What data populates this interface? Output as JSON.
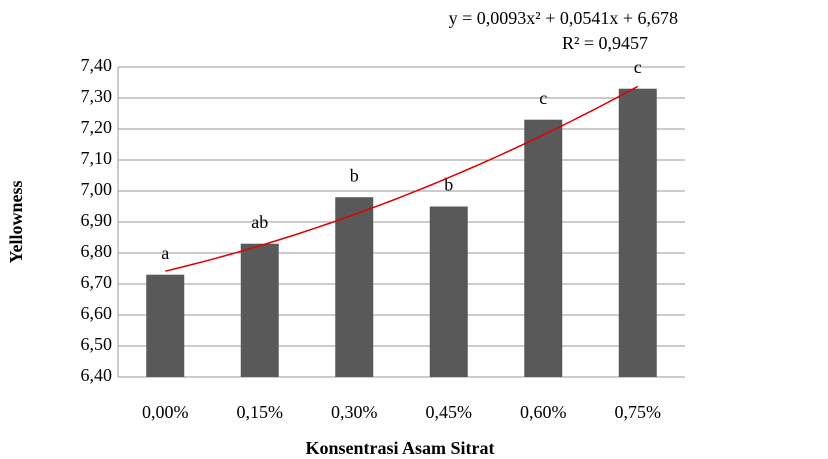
{
  "chart_data": {
    "type": "bar",
    "y_label": "Yellowness",
    "x_label": "Konsentrasi Asam Sitrat",
    "categories": [
      "0,00%",
      "0,15%",
      "0,30%",
      "0,45%",
      "0,60%",
      "0,75%"
    ],
    "values": [
      6.73,
      6.83,
      6.98,
      6.95,
      7.23,
      7.33
    ],
    "significance_labels": [
      "a",
      "ab",
      "b",
      "b",
      "c",
      "c"
    ],
    "color": "#595959",
    "ylim": [
      6.4,
      7.4
    ],
    "yticks": [
      {
        "value": 6.4,
        "label": "6,40"
      },
      {
        "value": 6.5,
        "label": "6,50"
      },
      {
        "value": 6.6,
        "label": "6,60"
      },
      {
        "value": 6.7,
        "label": "6,70"
      },
      {
        "value": 6.8,
        "label": "6,80"
      },
      {
        "value": 6.9,
        "label": "6,90"
      },
      {
        "value": 7.0,
        "label": "7,00"
      },
      {
        "value": 7.1,
        "label": "7,10"
      },
      {
        "value": 7.2,
        "label": "7,20"
      },
      {
        "value": 7.3,
        "label": "7,30"
      },
      {
        "value": 7.4,
        "label": "7,40"
      }
    ],
    "grid": true,
    "trendline": {
      "equation": "y = 0,0093x² + 0,0541x + 6,678",
      "r_squared": "R² = 0,9457",
      "coefficients": [
        0.0093,
        0.0541,
        6.678
      ],
      "color": "#e00000"
    }
  }
}
